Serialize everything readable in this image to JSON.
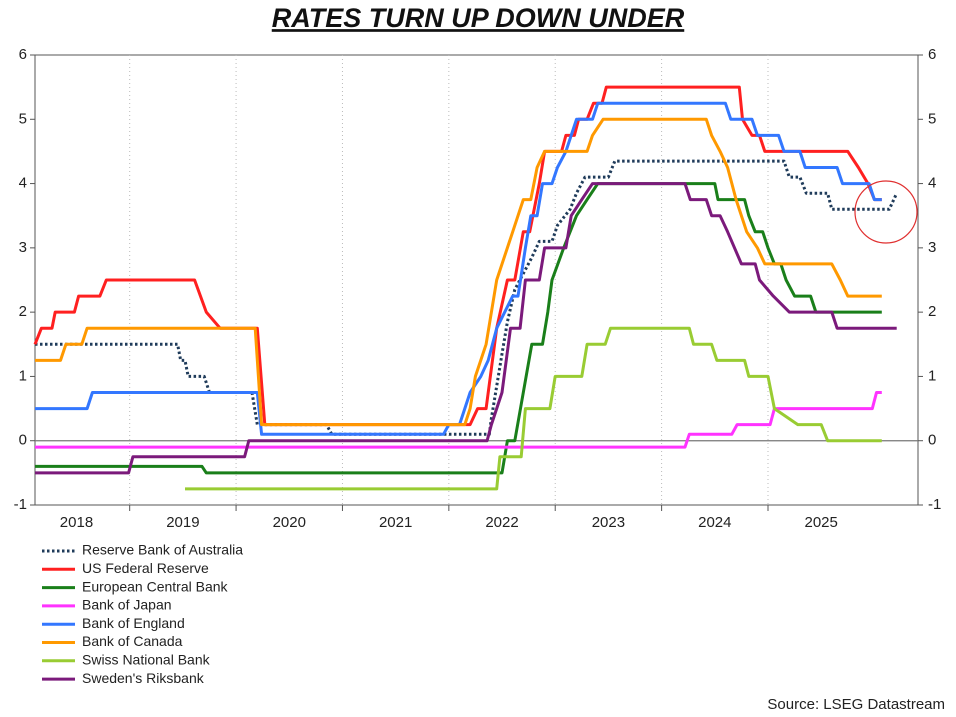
{
  "chart_data": {
    "type": "line",
    "title": "RATES TURN UP DOWN UNDER",
    "source": "Source: LSEG Datastream",
    "xlim": [
      2018.11,
      2026.41
    ],
    "xticks": [
      {
        "value": 2018.5,
        "label": "2018"
      },
      {
        "value": 2019.5,
        "label": "2019"
      },
      {
        "value": 2020.5,
        "label": "2020"
      },
      {
        "value": 2021.5,
        "label": "2021"
      },
      {
        "value": 2022.5,
        "label": "2022"
      },
      {
        "value": 2023.5,
        "label": "2023"
      },
      {
        "value": 2024.5,
        "label": "2024"
      },
      {
        "value": 2025.5,
        "label": "2025"
      }
    ],
    "xgrid": [
      2019,
      2020,
      2021,
      2022,
      2023,
      2024,
      2025
    ],
    "ylim": [
      -1,
      6
    ],
    "yticks": [
      -1,
      0,
      1,
      2,
      3,
      4,
      5,
      6
    ],
    "grid": true,
    "series": [
      {
        "name": "Reserve Bank of Australia",
        "color": "#1f3b5a",
        "style": "dotted",
        "x": [
          2018.11,
          2019.45,
          2019.48,
          2019.52,
          2019.55,
          2019.7,
          2019.75,
          2020.15,
          2020.2,
          2020.85,
          2020.9,
          2022.38,
          2022.4,
          2022.45,
          2022.5,
          2022.55,
          2022.62,
          2022.7,
          2022.78,
          2022.85,
          2022.97,
          2023.02,
          2023.14,
          2023.2,
          2023.28,
          2023.5,
          2023.56,
          2025.15,
          2025.2,
          2025.3,
          2025.36,
          2025.56,
          2025.6,
          2026.14,
          2026.21
        ],
        "values": [
          1.5,
          1.5,
          1.25,
          1.25,
          1.0,
          1.0,
          0.75,
          0.75,
          0.25,
          0.25,
          0.1,
          0.1,
          0.35,
          0.85,
          1.35,
          1.85,
          2.35,
          2.6,
          2.85,
          3.1,
          3.1,
          3.35,
          3.6,
          3.85,
          4.1,
          4.1,
          4.35,
          4.35,
          4.1,
          4.1,
          3.85,
          3.85,
          3.6,
          3.6,
          3.85
        ]
      },
      {
        "name": "US Federal Reserve",
        "color": "#ff2020",
        "style": "solid",
        "x": [
          2018.11,
          2018.17,
          2018.27,
          2018.3,
          2018.48,
          2018.52,
          2018.72,
          2018.78,
          2019.61,
          2019.72,
          2019.85,
          2020.2,
          2020.27,
          2022.2,
          2022.27,
          2022.35,
          2022.45,
          2022.55,
          2022.62,
          2022.7,
          2022.76,
          2022.85,
          2022.9,
          2023.06,
          2023.1,
          2023.18,
          2023.22,
          2023.3,
          2023.36,
          2023.44,
          2023.48,
          2024.73,
          2024.76,
          2024.85,
          2024.92,
          2024.97,
          2025.75,
          2025.85,
          2025.94,
          2026.0,
          2026.07
        ],
        "values": [
          1.5,
          1.75,
          1.75,
          2.0,
          2.0,
          2.25,
          2.25,
          2.5,
          2.5,
          2.0,
          1.75,
          1.75,
          0.25,
          0.25,
          0.5,
          0.5,
          1.75,
          2.5,
          2.5,
          3.25,
          3.25,
          4.0,
          4.5,
          4.5,
          4.75,
          4.75,
          5.0,
          5.0,
          5.25,
          5.25,
          5.5,
          5.5,
          5.0,
          4.75,
          4.75,
          4.5,
          4.5,
          4.25,
          4.0,
          3.75,
          3.75
        ]
      },
      {
        "name": "European Central Bank",
        "color": "#1a7f1a",
        "style": "solid",
        "x": [
          2018.11,
          2019.68,
          2019.72,
          2022.5,
          2022.55,
          2022.62,
          2022.7,
          2022.78,
          2022.88,
          2022.93,
          2022.97,
          2023.08,
          2023.2,
          2023.3,
          2023.4,
          2024.5,
          2024.53,
          2024.78,
          2024.82,
          2024.88,
          2024.95,
          2025.0,
          2025.06,
          2025.12,
          2025.17,
          2025.25,
          2025.4,
          2025.45,
          2026.07
        ],
        "values": [
          -0.4,
          -0.4,
          -0.5,
          -0.5,
          0,
          0,
          0.75,
          1.5,
          1.5,
          2.0,
          2.5,
          3.0,
          3.5,
          3.75,
          4.0,
          4.0,
          3.75,
          3.75,
          3.5,
          3.25,
          3.25,
          3.0,
          2.75,
          2.75,
          2.5,
          2.25,
          2.25,
          2.0,
          2.0
        ]
      },
      {
        "name": "Bank of Japan",
        "color": "#ff33ff",
        "style": "solid",
        "x": [
          2018.11,
          2024.22,
          2024.26,
          2024.66,
          2024.71,
          2025.02,
          2025.06,
          2025.98,
          2026.02,
          2026.07
        ],
        "values": [
          -0.1,
          -0.1,
          0.1,
          0.1,
          0.25,
          0.25,
          0.5,
          0.5,
          0.75,
          0.75
        ]
      },
      {
        "name": "Bank of England",
        "color": "#3377ff",
        "style": "solid",
        "x": [
          2018.11,
          2018.6,
          2018.65,
          2020.2,
          2020.24,
          2021.95,
          2022.0,
          2022.1,
          2022.15,
          2022.2,
          2022.3,
          2022.37,
          2022.45,
          2022.6,
          2022.65,
          2022.72,
          2022.77,
          2022.83,
          2022.88,
          2022.97,
          2023.02,
          2023.1,
          2023.2,
          2023.35,
          2023.4,
          2024.6,
          2024.65,
          2024.85,
          2024.9,
          2025.1,
          2025.15,
          2025.3,
          2025.35,
          2025.65,
          2025.7,
          2025.95,
          2026.0,
          2026.07
        ],
        "values": [
          0.5,
          0.5,
          0.75,
          0.75,
          0.1,
          0.1,
          0.25,
          0.25,
          0.5,
          0.75,
          1.0,
          1.25,
          1.75,
          2.25,
          2.25,
          3.0,
          3.5,
          3.5,
          4.0,
          4.0,
          4.25,
          4.5,
          5.0,
          5.0,
          5.25,
          5.25,
          5.0,
          5.0,
          4.75,
          4.75,
          4.5,
          4.5,
          4.25,
          4.25,
          4.0,
          4.0,
          3.75,
          3.75
        ]
      },
      {
        "name": "Bank of Canada",
        "color": "#ff9900",
        "style": "solid",
        "x": [
          2018.11,
          2018.35,
          2018.4,
          2018.55,
          2018.6,
          2020.18,
          2020.24,
          2022.15,
          2022.2,
          2022.25,
          2022.35,
          2022.45,
          2022.6,
          2022.7,
          2022.77,
          2022.83,
          2022.9,
          2023.3,
          2023.35,
          2023.45,
          2024.42,
          2024.47,
          2024.55,
          2024.62,
          2024.7,
          2024.8,
          2024.9,
          2024.97,
          2025.6,
          2025.68,
          2025.75,
          2026.07
        ],
        "values": [
          1.25,
          1.25,
          1.5,
          1.5,
          1.75,
          1.75,
          0.25,
          0.25,
          0.5,
          1.0,
          1.5,
          2.5,
          3.25,
          3.75,
          3.75,
          4.25,
          4.5,
          4.5,
          4.75,
          5.0,
          5.0,
          4.75,
          4.5,
          4.25,
          3.75,
          3.25,
          3.0,
          2.75,
          2.75,
          2.5,
          2.25,
          2.25
        ]
      },
      {
        "name": "Swiss National Bank",
        "color": "#99cc33",
        "style": "solid",
        "x": [
          2019.52,
          2022.45,
          2022.48,
          2022.68,
          2022.72,
          2022.95,
          2023.0,
          2023.25,
          2023.3,
          2023.47,
          2023.52,
          2024.26,
          2024.3,
          2024.47,
          2024.52,
          2024.78,
          2024.82,
          2025.0,
          2025.06,
          2025.28,
          2025.5,
          2025.56,
          2026.07
        ],
        "values": [
          -0.75,
          -0.75,
          -0.25,
          -0.25,
          0.5,
          0.5,
          1.0,
          1.0,
          1.5,
          1.5,
          1.75,
          1.75,
          1.5,
          1.5,
          1.25,
          1.25,
          1.0,
          1.0,
          0.5,
          0.25,
          0.25,
          0,
          0
        ]
      },
      {
        "name": "Sweden's Riksbank",
        "color": "#7b1a7b",
        "style": "solid",
        "x": [
          2018.11,
          2018.99,
          2019.03,
          2020.08,
          2020.12,
          2022.36,
          2022.4,
          2022.5,
          2022.58,
          2022.67,
          2022.72,
          2022.85,
          2022.9,
          2023.1,
          2023.15,
          2023.25,
          2023.35,
          2024.22,
          2024.27,
          2024.42,
          2024.47,
          2024.55,
          2024.62,
          2024.75,
          2024.88,
          2024.92,
          2025.05,
          2025.2,
          2025.6,
          2025.65,
          2026.21
        ],
        "values": [
          -0.5,
          -0.5,
          -0.25,
          -0.25,
          0,
          0,
          0.25,
          0.75,
          1.75,
          1.75,
          2.5,
          2.5,
          3.0,
          3.0,
          3.5,
          3.75,
          4.0,
          4.0,
          3.75,
          3.75,
          3.5,
          3.5,
          3.25,
          2.75,
          2.75,
          2.5,
          2.25,
          2.0,
          2.0,
          1.75,
          1.75
        ]
      }
    ]
  }
}
